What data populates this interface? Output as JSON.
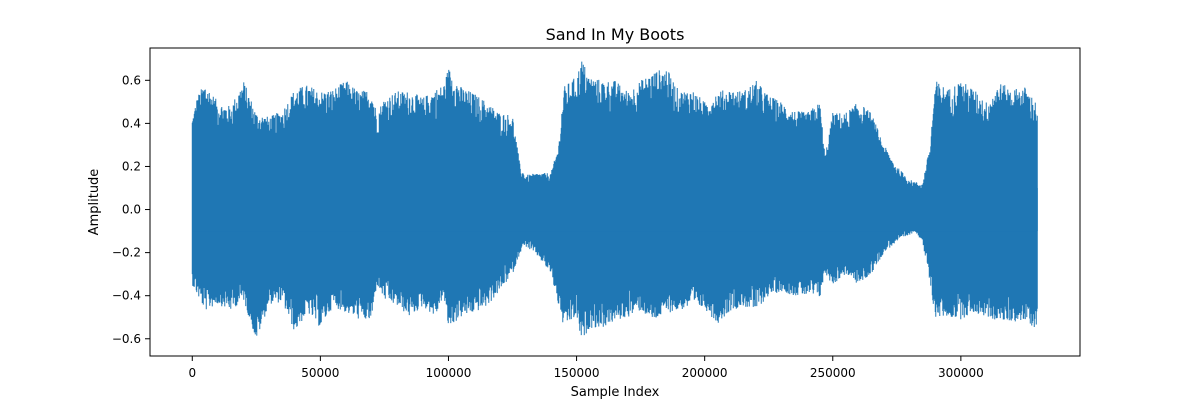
{
  "chart_data": {
    "type": "line",
    "title": "Sand In My Boots",
    "xlabel": "Sample Index",
    "ylabel": "Amplitude",
    "xlim": [
      -16500,
      346500
    ],
    "ylim": [
      -0.68,
      0.75
    ],
    "x_ticks": [
      0,
      50000,
      100000,
      150000,
      200000,
      250000,
      300000
    ],
    "x_tick_labels": [
      "0",
      "50000",
      "100000",
      "150000",
      "200000",
      "250000",
      "300000"
    ],
    "y_ticks": [
      -0.6,
      -0.4,
      -0.2,
      0.0,
      0.2,
      0.4,
      0.6
    ],
    "y_tick_labels": [
      "−0.6",
      "−0.4",
      "−0.2",
      "0.0",
      "0.2",
      "0.4",
      "0.6"
    ],
    "grid": false,
    "series": [
      {
        "color": "#1f77b4",
        "x_start": 0,
        "x_end": 330000,
        "envelope_x": [
          0,
          2000,
          5000,
          10000,
          15000,
          20000,
          25000,
          30000,
          35000,
          40000,
          45000,
          50000,
          55000,
          60000,
          65000,
          70000,
          72000,
          75000,
          80000,
          85000,
          90000,
          95000,
          98000,
          100000,
          105000,
          110000,
          115000,
          120000,
          125000,
          128000,
          130000,
          135000,
          140000,
          143000,
          145000,
          150000,
          152000,
          155000,
          160000,
          165000,
          170000,
          175000,
          180000,
          185000,
          190000,
          195000,
          200000,
          205000,
          210000,
          215000,
          220000,
          225000,
          230000,
          235000,
          240000,
          245000,
          247000,
          250000,
          255000,
          260000,
          265000,
          270000,
          275000,
          280000,
          282000,
          285000,
          288000,
          290000,
          295000,
          300000,
          305000,
          310000,
          315000,
          320000,
          325000,
          330000
        ],
        "envelope_max": [
          0.43,
          0.53,
          0.59,
          0.5,
          0.48,
          0.6,
          0.45,
          0.43,
          0.46,
          0.56,
          0.58,
          0.55,
          0.56,
          0.6,
          0.55,
          0.56,
          0.45,
          0.52,
          0.55,
          0.55,
          0.52,
          0.56,
          0.58,
          0.66,
          0.57,
          0.54,
          0.5,
          0.45,
          0.44,
          0.2,
          0.16,
          0.17,
          0.17,
          0.3,
          0.57,
          0.62,
          0.7,
          0.62,
          0.6,
          0.6,
          0.55,
          0.6,
          0.64,
          0.66,
          0.55,
          0.56,
          0.5,
          0.55,
          0.56,
          0.55,
          0.6,
          0.53,
          0.5,
          0.46,
          0.45,
          0.5,
          0.25,
          0.45,
          0.45,
          0.5,
          0.45,
          0.3,
          0.2,
          0.14,
          0.13,
          0.12,
          0.3,
          0.6,
          0.56,
          0.6,
          0.56,
          0.5,
          0.59,
          0.56,
          0.57,
          0.49
        ],
        "envelope_min": [
          -0.35,
          -0.4,
          -0.47,
          -0.44,
          -0.47,
          -0.42,
          -0.61,
          -0.44,
          -0.43,
          -0.57,
          -0.48,
          -0.55,
          -0.45,
          -0.48,
          -0.51,
          -0.52,
          -0.35,
          -0.42,
          -0.45,
          -0.5,
          -0.45,
          -0.5,
          -0.4,
          -0.55,
          -0.5,
          -0.48,
          -0.45,
          -0.38,
          -0.3,
          -0.2,
          -0.17,
          -0.22,
          -0.3,
          -0.45,
          -0.55,
          -0.5,
          -0.62,
          -0.55,
          -0.55,
          -0.52,
          -0.5,
          -0.47,
          -0.52,
          -0.48,
          -0.47,
          -0.45,
          -0.46,
          -0.53,
          -0.47,
          -0.45,
          -0.47,
          -0.4,
          -0.38,
          -0.4,
          -0.4,
          -0.41,
          -0.3,
          -0.35,
          -0.3,
          -0.35,
          -0.3,
          -0.2,
          -0.15,
          -0.12,
          -0.1,
          -0.15,
          -0.35,
          -0.5,
          -0.5,
          -0.51,
          -0.48,
          -0.5,
          -0.52,
          -0.52,
          -0.52,
          -0.56
        ]
      }
    ]
  }
}
